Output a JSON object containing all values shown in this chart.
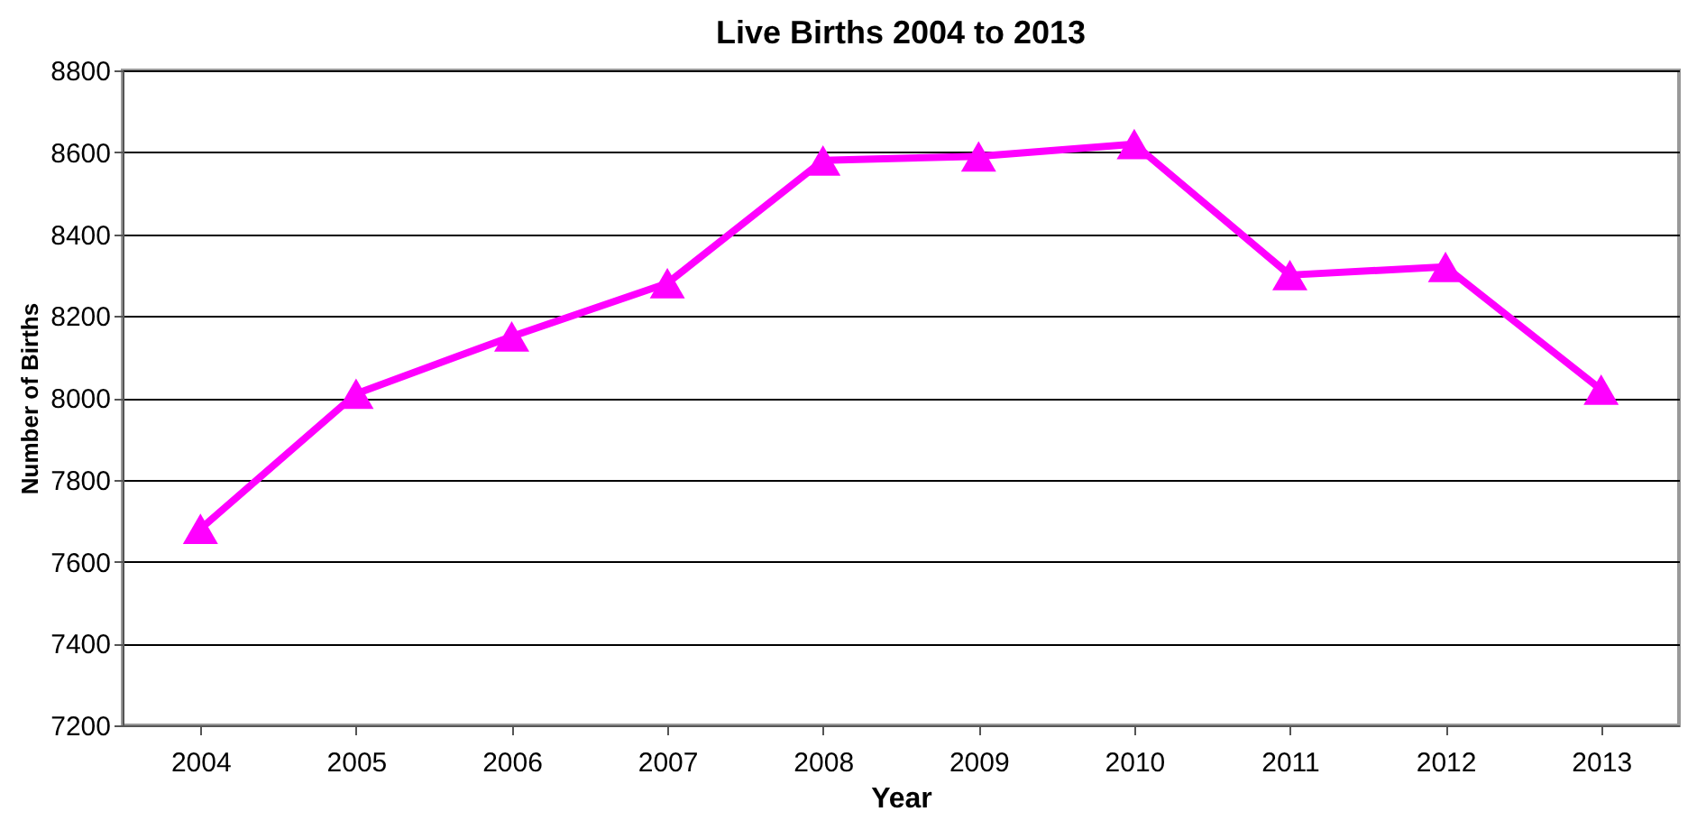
{
  "chart_data": {
    "type": "line",
    "title": "Live Births 2004 to 2013",
    "xlabel": "Year",
    "ylabel": "Number of Births",
    "categories": [
      "2004",
      "2005",
      "2006",
      "2007",
      "2008",
      "2009",
      "2010",
      "2011",
      "2012",
      "2013"
    ],
    "series": [
      {
        "color": "#ff00ff",
        "values": [
          7680,
          8010,
          8150,
          8280,
          8580,
          8590,
          8620,
          8300,
          8320,
          8020
        ]
      }
    ],
    "ylim": [
      7200,
      8800
    ],
    "yticks": [
      7200,
      7400,
      7600,
      7800,
      8000,
      8200,
      8400,
      8600,
      8800
    ],
    "grid": "y",
    "marker": "triangle",
    "line_style": "solid"
  }
}
